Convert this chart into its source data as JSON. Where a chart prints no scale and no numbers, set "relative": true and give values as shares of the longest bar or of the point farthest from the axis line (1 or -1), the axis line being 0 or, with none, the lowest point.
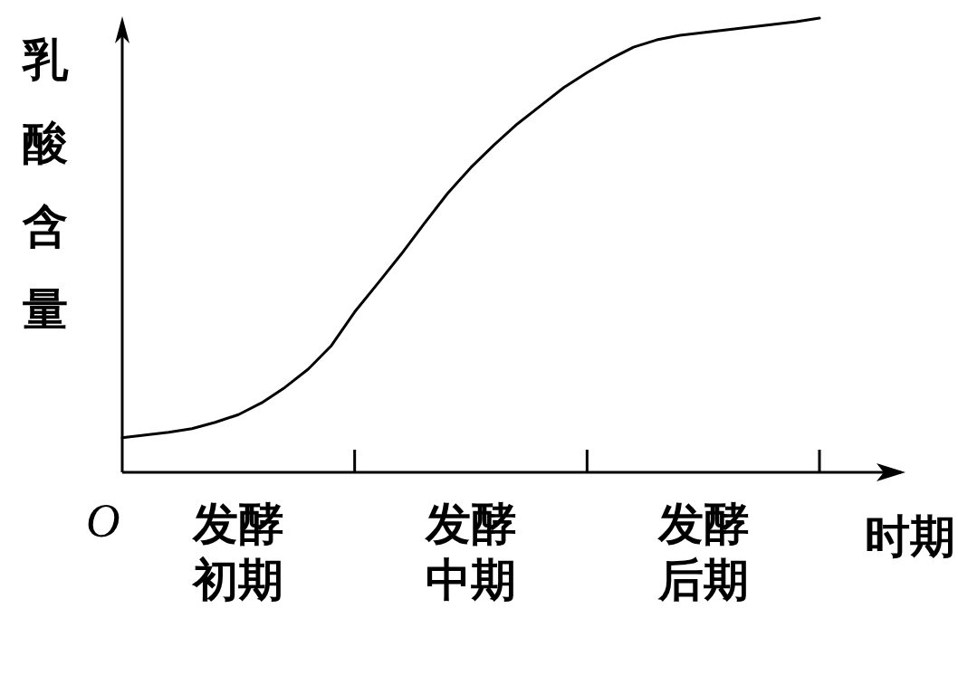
{
  "chart_data": {
    "type": "line",
    "relative": true,
    "xlabel": "时期",
    "ylabel": "乳酸含量",
    "marker": "none",
    "line_style": "solid",
    "categories": [
      null,
      null,
      null,
      null,
      null,
      "发酵初期",
      null,
      null,
      null,
      null,
      null,
      null,
      null,
      null,
      null,
      "发酵中期",
      null,
      null,
      null,
      null,
      null,
      null,
      null,
      null,
      null,
      "发酵后期",
      null,
      null,
      null,
      null,
      null
    ],
    "annotations": [
      "O"
    ],
    "series": [
      {
        "color": "#000000",
        "values": [
          0.076,
          0.082,
          0.088,
          0.096,
          0.11,
          0.127,
          0.153,
          0.187,
          0.227,
          0.279,
          0.353,
          0.416,
          0.48,
          0.548,
          0.614,
          0.671,
          0.721,
          0.767,
          0.807,
          0.847,
          0.88,
          0.91,
          0.936,
          0.952,
          0.962,
          0.968,
          0.974,
          0.98,
          0.986,
          0.992,
          1.0
        ]
      }
    ]
  }
}
